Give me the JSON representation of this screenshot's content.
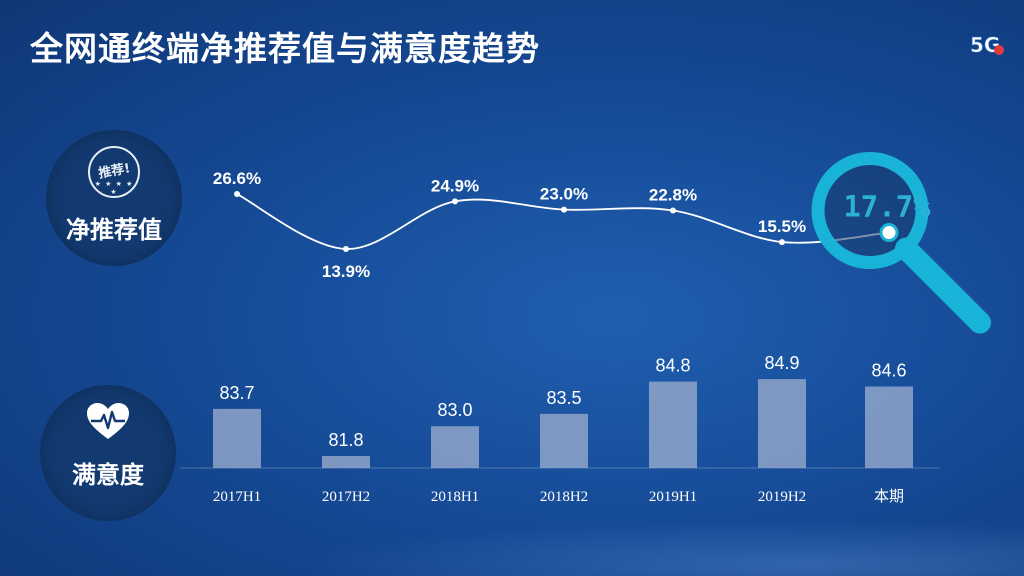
{
  "title": "全网通终端净推荐值与满意度趋势",
  "logo_text": "5G",
  "badges": {
    "nps": {
      "label": "净推荐值",
      "stamp_text": "推荐!",
      "stamp_stars": "★ ★ ★ ★ ★",
      "icon": "recommend-stamp-icon"
    },
    "satisfaction": {
      "label": "满意度",
      "icon": "heart-pulse-icon"
    }
  },
  "colors": {
    "bar": "#8fa5c9",
    "line": "#ffffff",
    "magnifier": "#1ab3d8",
    "highlight_text": "#2bb0d6"
  },
  "chart_data": [
    {
      "type": "line",
      "name": "净推荐值",
      "categories": [
        "2017H1",
        "2017H2",
        "2018H1",
        "2018H2",
        "2019H1",
        "2019H2",
        "本期"
      ],
      "values": [
        26.6,
        13.9,
        24.9,
        23.0,
        22.8,
        15.5,
        17.7
      ],
      "labels": [
        "26.6%",
        "13.9%",
        "24.9%",
        "23.0%",
        "22.8%",
        "15.5%",
        "17.7%"
      ],
      "highlight_index": 6
    },
    {
      "type": "bar",
      "name": "满意度",
      "categories": [
        "2017H1",
        "2017H2",
        "2018H1",
        "2018H2",
        "2019H1",
        "2019H2",
        "本期"
      ],
      "values": [
        83.7,
        81.8,
        83.0,
        83.5,
        84.8,
        84.9,
        84.6
      ],
      "labels": [
        "83.7",
        "81.8",
        "83.0",
        "83.5",
        "84.8",
        "84.9",
        "84.6"
      ]
    }
  ]
}
